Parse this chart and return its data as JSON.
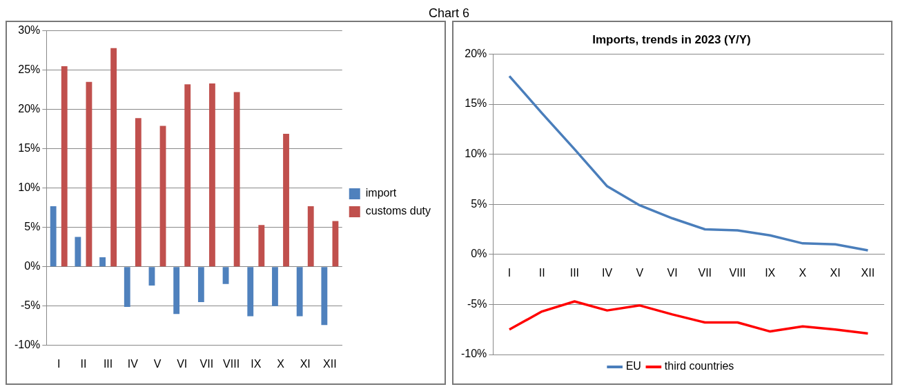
{
  "chart_data": [
    {
      "type": "bar",
      "annotations": [
        "Chart 6"
      ],
      "categories": [
        "I",
        "II",
        "III",
        "IV",
        "V",
        "VI",
        "VII",
        "VIII",
        "IX",
        "X",
        "XI",
        "XII"
      ],
      "series": [
        {
          "name": "import",
          "color": "#4f81bd",
          "values": [
            7.7,
            3.8,
            1.2,
            -5.1,
            -2.4,
            -6.0,
            -4.5,
            -2.2,
            -6.3,
            -5.0,
            -6.3,
            -7.4
          ]
        },
        {
          "name": "customs duty",
          "color": "#c0504d",
          "values": [
            25.5,
            23.5,
            27.8,
            18.9,
            17.9,
            23.2,
            23.3,
            22.2,
            5.3,
            16.9,
            7.7,
            5.8
          ]
        }
      ],
      "ylim": [
        -10,
        30
      ],
      "yticks": [
        {
          "value": -10,
          "label": "-10%"
        },
        {
          "value": -5,
          "label": "-5%"
        },
        {
          "value": 0,
          "label": "0%"
        },
        {
          "value": 5,
          "label": "5%"
        },
        {
          "value": 10,
          "label": "10%"
        },
        {
          "value": 15,
          "label": "15%"
        },
        {
          "value": 20,
          "label": "20%"
        },
        {
          "value": 25,
          "label": "25%"
        },
        {
          "value": 30,
          "label": "30%"
        }
      ],
      "grid": "y",
      "legend": "right"
    },
    {
      "type": "line",
      "title": "Imports, trends in 2023 (Y/Y)",
      "categories": [
        "I",
        "II",
        "III",
        "IV",
        "V",
        "VI",
        "VII",
        "VIII",
        "IX",
        "X",
        "XI",
        "XII"
      ],
      "series": [
        {
          "name": "EU",
          "color": "#4a7ebb",
          "values": [
            17.8,
            14.1,
            10.5,
            6.8,
            4.9,
            3.6,
            2.5,
            2.4,
            1.9,
            1.1,
            1.0,
            0.4
          ]
        },
        {
          "name": "third countries",
          "color": "#ff0000",
          "values": [
            -7.5,
            -5.7,
            -4.7,
            -5.6,
            -5.1,
            -6.0,
            -6.8,
            -6.8,
            -7.7,
            -7.2,
            -7.5,
            -7.9
          ]
        }
      ],
      "ylim": [
        -10,
        20
      ],
      "yticks": [
        {
          "value": -10,
          "label": "-10%"
        },
        {
          "value": -5,
          "label": "-5%"
        },
        {
          "value": 0,
          "label": "0%"
        },
        {
          "value": 5,
          "label": "5%"
        },
        {
          "value": 10,
          "label": "10%"
        },
        {
          "value": 15,
          "label": "15%"
        },
        {
          "value": 20,
          "label": "20%"
        }
      ],
      "grid": "y",
      "legend": "bottom",
      "marker": "none"
    }
  ]
}
